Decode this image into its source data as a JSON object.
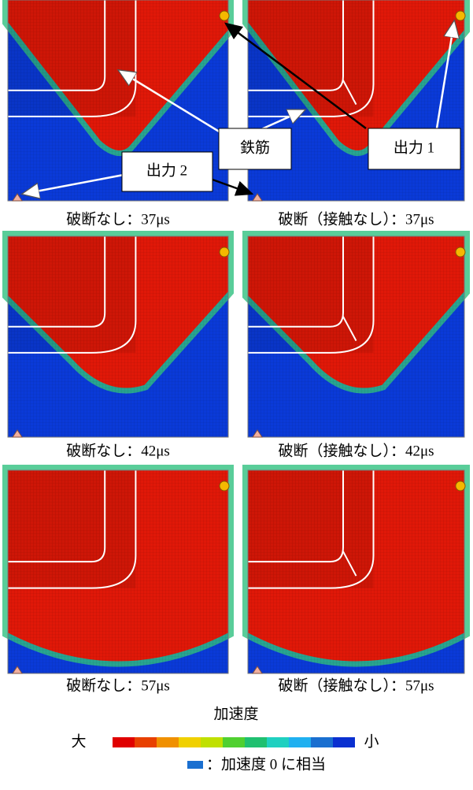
{
  "panels": [
    {
      "caption": "破断なし：37μs"
    },
    {
      "caption": "破断（接触なし）：37μs"
    },
    {
      "caption": "破断なし：42μs"
    },
    {
      "caption": "破断（接触なし）：42μs"
    },
    {
      "caption": "破断なし：57μs"
    },
    {
      "caption": "破断（接触なし）：57μs"
    }
  ],
  "callouts": {
    "rebar": "鉄筋",
    "output1": "出力 1",
    "output2": "出力 2"
  },
  "legend": {
    "title": "加速度",
    "high": "大",
    "low": "小",
    "zero_note": "：加速度 0 に相当"
  }
}
